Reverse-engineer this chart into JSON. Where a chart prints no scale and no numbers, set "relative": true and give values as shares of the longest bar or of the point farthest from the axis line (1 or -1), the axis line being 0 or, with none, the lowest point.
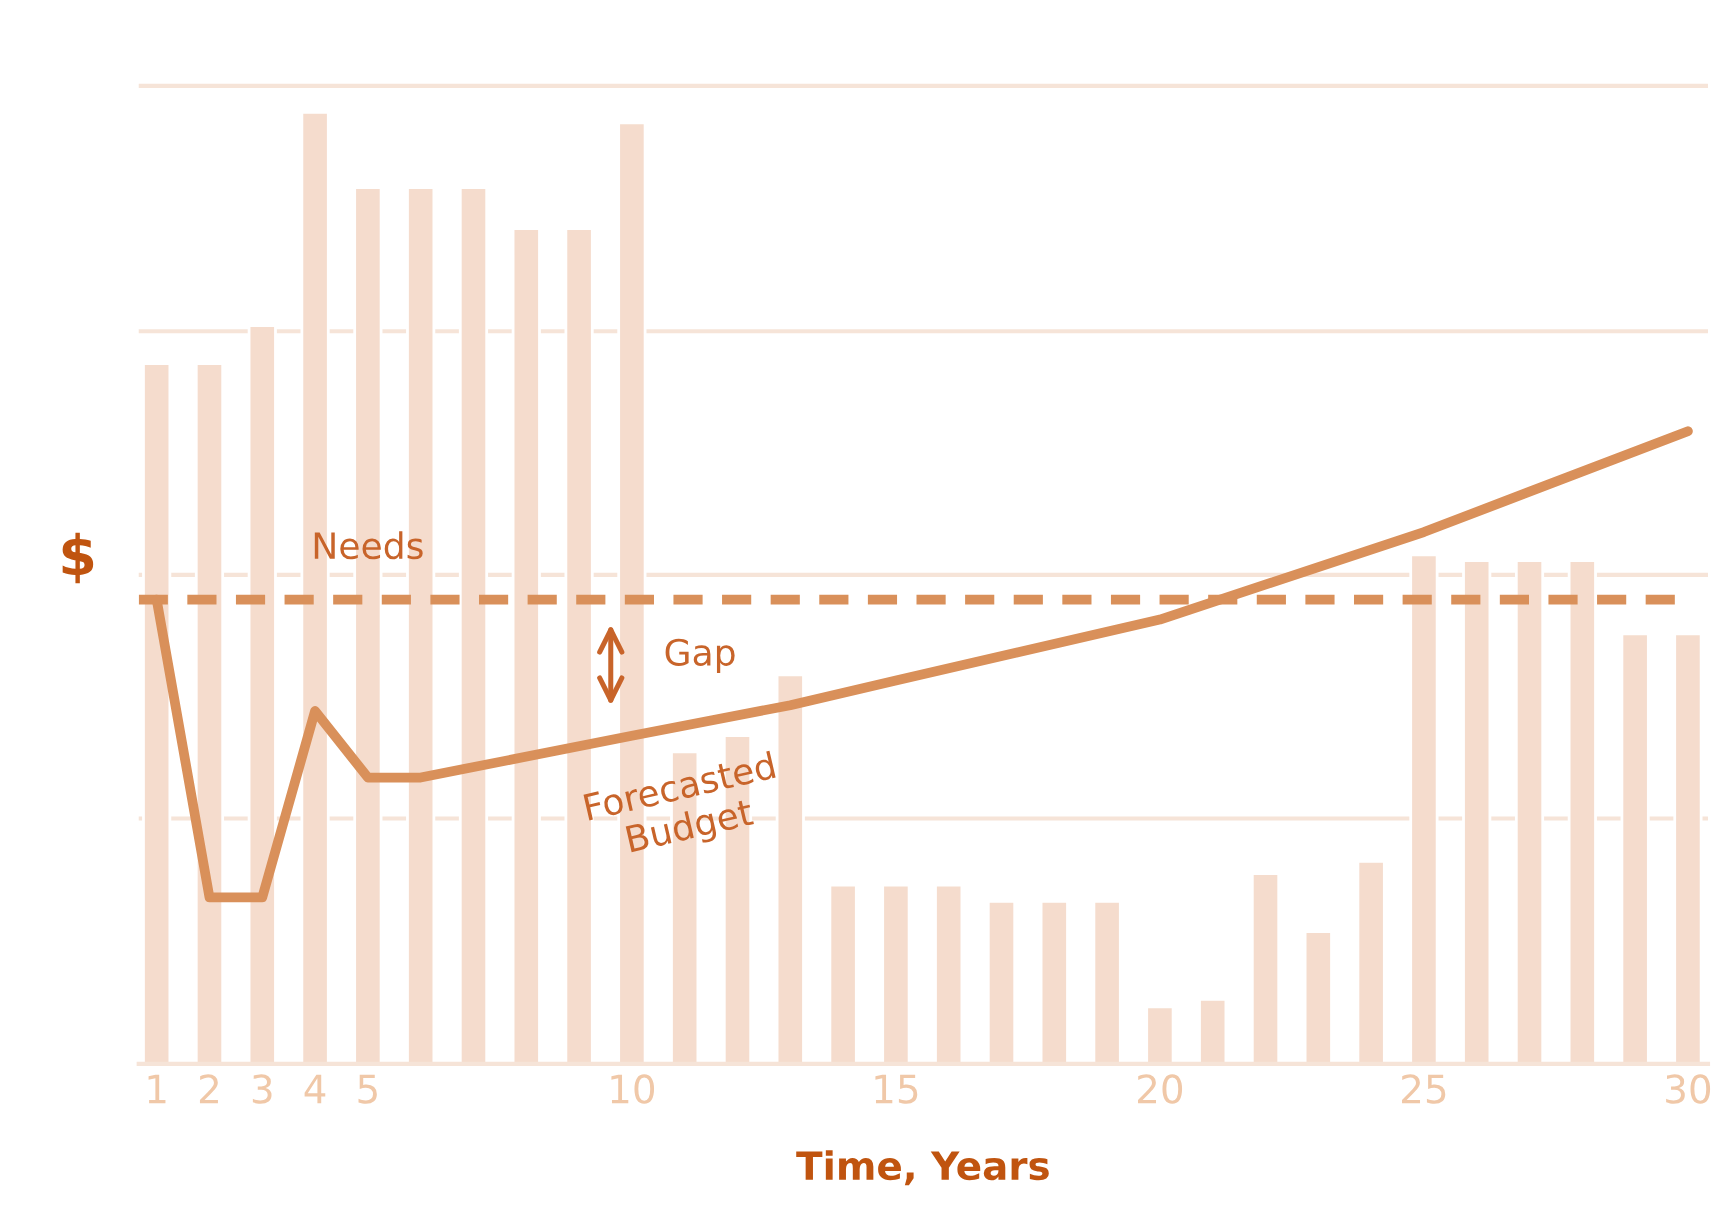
{
  "chart_data": {
    "type": "bar",
    "relative": true,
    "xlabel": "Time, Years",
    "ylabel": "$",
    "x": [
      1,
      2,
      3,
      4,
      5,
      6,
      7,
      8,
      9,
      10,
      11,
      12,
      13,
      14,
      15,
      16,
      17,
      18,
      19,
      20,
      21,
      22,
      23,
      24,
      25,
      26,
      27,
      28,
      29,
      30
    ],
    "xlim": [
      0.66,
      30.38
    ],
    "xticks": [
      1,
      2,
      3,
      4,
      5,
      10,
      15,
      20,
      25,
      30
    ],
    "tick_labels": "x",
    "grid": "y",
    "series": [
      {
        "color": "#f5dccd",
        "values": [
          0.736,
          0.736,
          0.776,
          1,
          0.921,
          0.921,
          0.921,
          0.878,
          0.878,
          0.989,
          0.328,
          0.345,
          0.409,
          0.188,
          0.188,
          0.188,
          0.171,
          0.171,
          0.171,
          0.06,
          0.068,
          0.2,
          0.139,
          0.213,
          0.535,
          0.529,
          0.529,
          0.529,
          0.452,
          0.452
        ]
      },
      {
        "type": "line",
        "color": "#d9905a",
        "x": [
          1,
          2,
          3,
          4,
          5,
          6,
          10,
          13,
          15,
          20,
          25,
          30
        ],
        "values": [
          0.488,
          0.175,
          0.175,
          0.371,
          0.301,
          0.301,
          0.345,
          0.377,
          0.403,
          0.467,
          0.559,
          0.665
        ]
      }
    ],
    "ref_lines": [
      {
        "axis": "y",
        "value": 0.488,
        "label": "Needs",
        "color": "#d9905a",
        "line_style": "dashed"
      }
    ],
    "annotations": [
      "Gap",
      {
        "text": "Forecasted\nBudget",
        "x": 11,
        "y": 0.33
      }
    ]
  }
}
